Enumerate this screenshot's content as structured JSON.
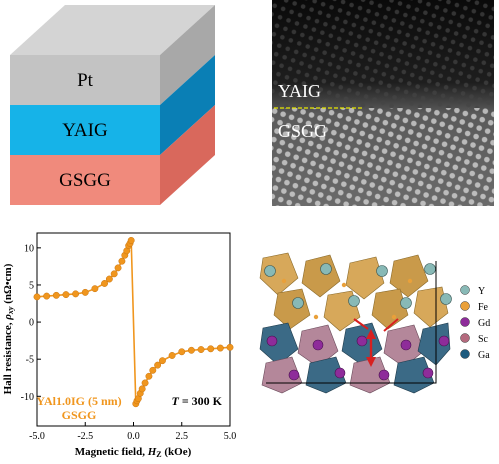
{
  "stack": {
    "layers": [
      {
        "label": "Pt",
        "color": "#c3c3c3"
      },
      {
        "label": "YAIG",
        "color": "#16b3e8"
      },
      {
        "label": "GSGG",
        "color": "#f08a7c"
      }
    ]
  },
  "stem": {
    "upper_label": "YAIG",
    "lower_label": "GSGG",
    "interface_color": "#e6e600"
  },
  "chart_data": {
    "type": "line",
    "xlabel": "Magnetic field, H_Z (kOe)",
    "ylabel": "Hall resistance, ρ_xy (nΩ•cm)",
    "xlim": [
      -5,
      5
    ],
    "ylim": [
      -14,
      12
    ],
    "xticks": [
      "-5.0",
      "-2.5",
      "0.0",
      "2.5",
      "5.0"
    ],
    "yticks": [
      "10",
      "5",
      "0",
      "-5",
      "-10"
    ],
    "annotation": "T = 300 K",
    "legend_lines": [
      "YAl1.0IG (5 nm)",
      "GSGG"
    ],
    "line_color": "#f0961e",
    "series": [
      {
        "x": [
          -5.0,
          -4.5,
          -4.0,
          -3.5,
          -3.0,
          -2.5,
          -2.0,
          -1.5,
          -1.25,
          -1.0,
          -0.8,
          -0.6,
          -0.45,
          -0.35,
          -0.25,
          -0.18,
          -0.12,
          0.12,
          0.18,
          0.25,
          0.35,
          0.45,
          0.6,
          0.8,
          1.0,
          1.25,
          1.5,
          2.0,
          2.5,
          3.0,
          3.5,
          4.0,
          4.5,
          5.0
        ],
        "y": [
          3.4,
          3.5,
          3.6,
          3.7,
          3.8,
          4.0,
          4.5,
          5.2,
          5.8,
          6.5,
          7.3,
          8.2,
          9.0,
          9.6,
          10.3,
          10.6,
          11.0,
          -11.0,
          -10.6,
          -10.3,
          -9.6,
          -9.0,
          -8.2,
          -7.3,
          -6.5,
          -5.8,
          -5.2,
          -4.5,
          -4.0,
          -3.8,
          -3.7,
          -3.6,
          -3.5,
          -3.4
        ]
      }
    ]
  },
  "legend_d": [
    {
      "label": "Y",
      "color": "#88b9b6"
    },
    {
      "label": "Fe",
      "color": "#e9a03a"
    },
    {
      "label": "Gd",
      "color": "#8e2c9a"
    },
    {
      "label": "Sc",
      "color": "#b46a7e"
    },
    {
      "label": "Ga",
      "color": "#1e5b7e"
    }
  ]
}
